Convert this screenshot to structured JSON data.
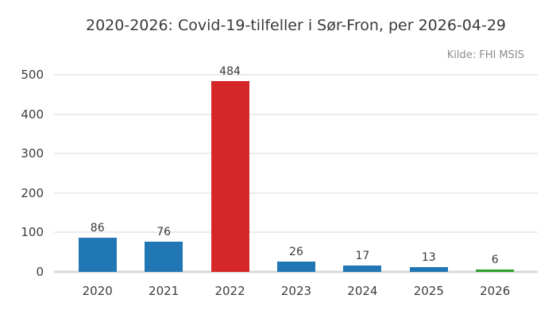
{
  "header": {
    "title": "2020-2026: Covid-19-tilfeller i Sør-Fron, per 2026-04-29",
    "source": "Kilde: FHI MSIS"
  },
  "colors": {
    "bar_default": "#2077b4",
    "bar_highlight": "#d62728",
    "bar_latest": "#2ca02c",
    "gridline": "#ececec",
    "axis_line": "#d8d8d8",
    "title_text": "#3a3a3a",
    "tick_text": "#3c3c3c",
    "source_text": "#8c8c8c"
  },
  "chart_data": {
    "type": "bar",
    "title": "2020-2026: Covid-19-tilfeller i Sør-Fron, per 2026-04-29",
    "annotation": "Kilde: FHI MSIS",
    "categories": [
      "2020",
      "2021",
      "2022",
      "2023",
      "2024",
      "2025",
      "2026"
    ],
    "values": [
      86,
      76,
      484,
      26,
      17,
      13,
      6
    ],
    "bar_colors": [
      "#2077b4",
      "#2077b4",
      "#d62728",
      "#2077b4",
      "#2077b4",
      "#2077b4",
      "#2ca02c"
    ],
    "yticks": [
      0,
      100,
      200,
      300,
      400,
      500
    ],
    "ylim": [
      0,
      500
    ],
    "xlabel": "",
    "ylabel": "",
    "grid": "horizontal",
    "legend": "none"
  }
}
